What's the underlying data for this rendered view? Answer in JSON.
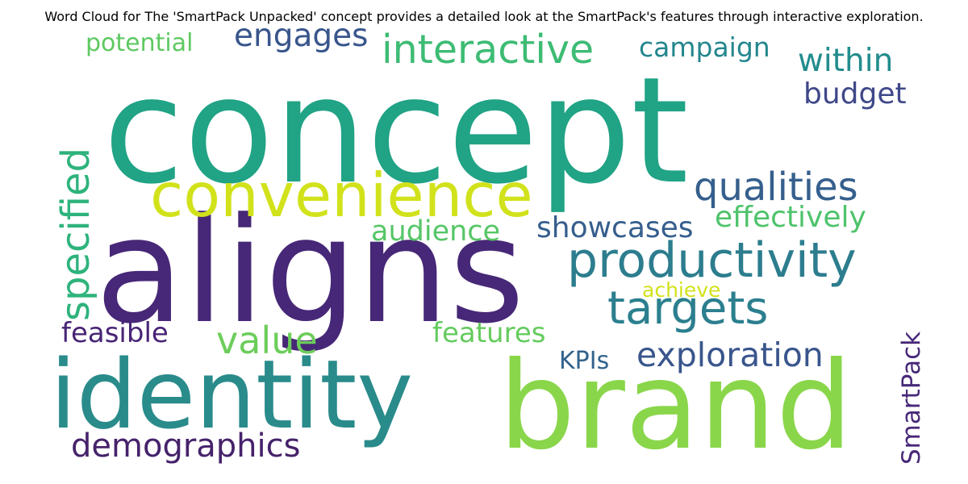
{
  "chart_data": {
    "type": "wordcloud",
    "title": "Word Cloud for The 'SmartPack Unpacked' concept provides a detailed look at the SmartPack's features through interactive exploration.",
    "colormap": "viridis",
    "words": [
      {
        "text": "concept",
        "weight": 100,
        "color": "#21a385",
        "orientation": "horizontal"
      },
      {
        "text": "aligns",
        "weight": 92,
        "color": "#472777",
        "orientation": "horizontal"
      },
      {
        "text": "brand",
        "weight": 88,
        "color": "#8ad64b",
        "orientation": "horizontal"
      },
      {
        "text": "identity",
        "weight": 74,
        "color": "#2a8b8b",
        "orientation": "horizontal"
      },
      {
        "text": "convenience",
        "weight": 46,
        "color": "#d1e21b",
        "orientation": "horizontal"
      },
      {
        "text": "productivity",
        "weight": 38,
        "color": "#2c7d8e",
        "orientation": "horizontal"
      },
      {
        "text": "specified",
        "weight": 34,
        "color": "#2eb37c",
        "orientation": "vertical"
      },
      {
        "text": "targets",
        "weight": 34,
        "color": "#2b7f8e",
        "orientation": "horizontal"
      },
      {
        "text": "interactive",
        "weight": 32,
        "color": "#3dbc74",
        "orientation": "horizontal"
      },
      {
        "text": "demographics",
        "weight": 30,
        "color": "#46226b",
        "orientation": "horizontal"
      },
      {
        "text": "qualities",
        "weight": 30,
        "color": "#355f8d",
        "orientation": "horizontal"
      },
      {
        "text": "value",
        "weight": 30,
        "color": "#6ccd5a",
        "orientation": "horizontal"
      },
      {
        "text": "exploration",
        "weight": 28,
        "color": "#39558c",
        "orientation": "horizontal"
      },
      {
        "text": "engages",
        "weight": 28,
        "color": "#39568c",
        "orientation": "horizontal"
      },
      {
        "text": "within",
        "weight": 28,
        "color": "#228c8d",
        "orientation": "horizontal"
      },
      {
        "text": "SmartPack",
        "weight": 27,
        "color": "#482979",
        "orientation": "vertical"
      },
      {
        "text": "effectively",
        "weight": 26,
        "color": "#4ec36b",
        "orientation": "horizontal"
      },
      {
        "text": "showcases",
        "weight": 26,
        "color": "#355e8d",
        "orientation": "horizontal"
      },
      {
        "text": "budget",
        "weight": 26,
        "color": "#3f4889",
        "orientation": "horizontal"
      },
      {
        "text": "audience",
        "weight": 25,
        "color": "#56c667",
        "orientation": "horizontal"
      },
      {
        "text": "features",
        "weight": 25,
        "color": "#65cb5e",
        "orientation": "horizontal"
      },
      {
        "text": "feasible",
        "weight": 25,
        "color": "#482475",
        "orientation": "horizontal"
      },
      {
        "text": "campaign",
        "weight": 25,
        "color": "#24868e",
        "orientation": "horizontal"
      },
      {
        "text": "potential",
        "weight": 24,
        "color": "#5ec962",
        "orientation": "horizontal"
      },
      {
        "text": "KPIs",
        "weight": 23,
        "color": "#33638d",
        "orientation": "horizontal"
      },
      {
        "text": "achieve",
        "weight": 20,
        "color": "#d2e21b",
        "orientation": "horizontal"
      }
    ]
  }
}
